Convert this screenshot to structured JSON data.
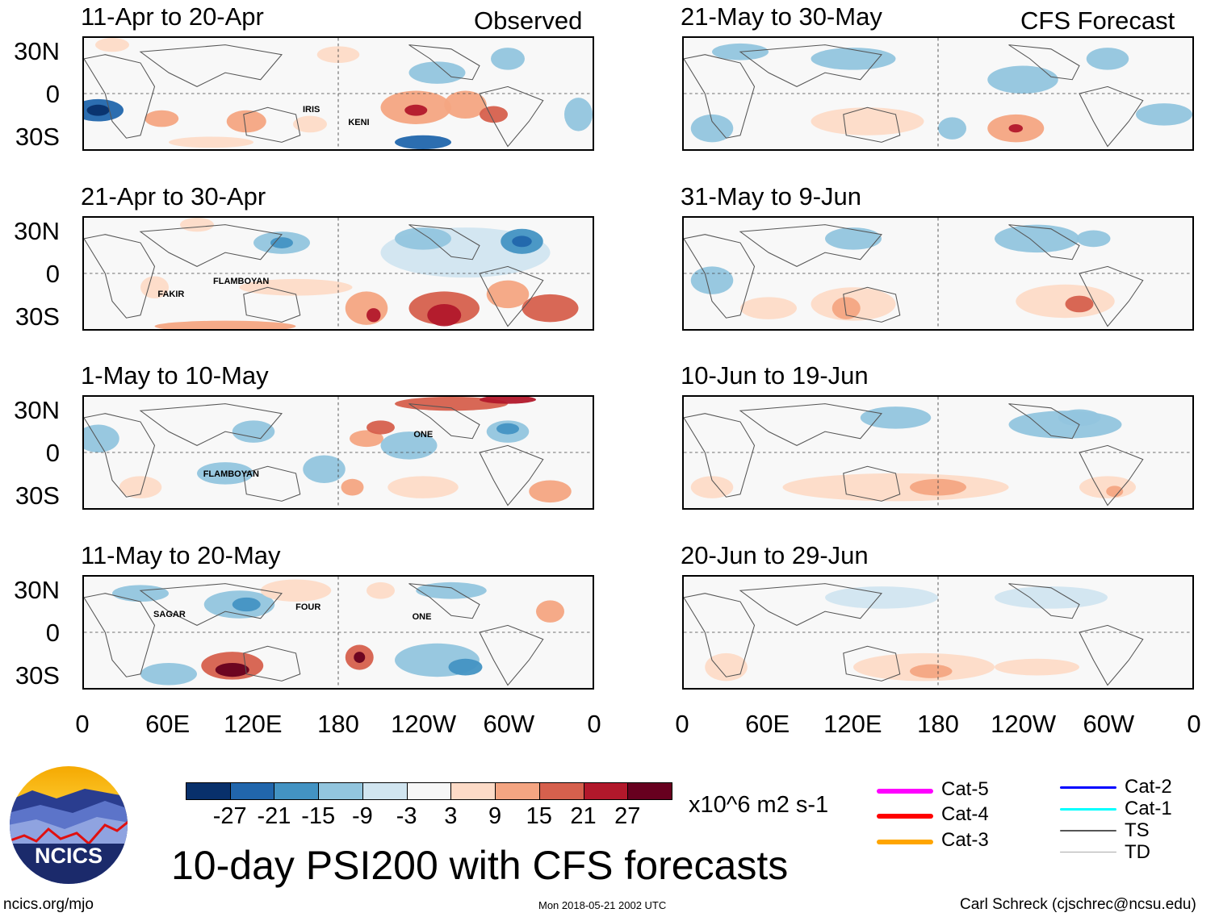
{
  "observed_label": "Observed",
  "forecast_label": "CFS Forecast",
  "observed_panels": [
    {
      "title": "11-Apr to 20-Apr",
      "storms": [
        {
          "name": "IRIS",
          "lon": 155,
          "lat": -12
        },
        {
          "name": "KENI",
          "lon": 187,
          "lat": -21
        }
      ]
    },
    {
      "title": "21-Apr to 30-Apr",
      "storms": [
        {
          "name": "FAKIR",
          "lon": 53,
          "lat": -15
        },
        {
          "name": "FLAMBOYAN",
          "lon": 92,
          "lat": -6
        }
      ]
    },
    {
      "title": "1-May to 10-May",
      "storms": [
        {
          "name": "ONE",
          "lon": 233,
          "lat": 12
        },
        {
          "name": "FLAMBOYAN",
          "lon": 85,
          "lat": -16
        }
      ]
    },
    {
      "title": "11-May to 20-May",
      "storms": [
        {
          "name": "SAGAR",
          "lon": 50,
          "lat": 12
        },
        {
          "name": "FOUR",
          "lon": 150,
          "lat": 17
        },
        {
          "name": "ONE",
          "lon": 232,
          "lat": 10
        }
      ]
    }
  ],
  "forecast_panels": [
    {
      "title": "21-May to 30-May"
    },
    {
      "title": "31-May to 9-Jun"
    },
    {
      "title": "10-Jun to 19-Jun"
    },
    {
      "title": "20-Jun to 29-Jun"
    }
  ],
  "lat_labels": [
    "30N",
    "0",
    "30S"
  ],
  "lon_labels": [
    "0",
    "60E",
    "120E",
    "180",
    "120W",
    "60W",
    "0"
  ],
  "colorbar": {
    "colors": [
      "#08306b",
      "#2166ac",
      "#4393c3",
      "#92c5de",
      "#d1e5f0",
      "#f7f7f7",
      "#fddbc7",
      "#f4a582",
      "#d6604d",
      "#b2182b",
      "#67001f"
    ],
    "labels": [
      "-27",
      "-21",
      "-15",
      "-9",
      "-3",
      "3",
      "9",
      "15",
      "21",
      "27"
    ],
    "units": "x10^6 m2 s-1"
  },
  "legend": [
    {
      "label": "Cat-5",
      "color": "#ff00ff"
    },
    {
      "label": "Cat-4",
      "color": "#ff0000"
    },
    {
      "label": "Cat-3",
      "color": "#ffa500"
    },
    {
      "label": "Cat-2",
      "color": "#0000ff"
    },
    {
      "label": "Cat-1",
      "color": "#00ffff"
    },
    {
      "label": "TS",
      "color": "#555555"
    },
    {
      "label": "TD",
      "color": "#aaaaaa"
    }
  ],
  "title": "10-day PSI200 with CFS forecasts",
  "logo_text": "NCICS",
  "footer": {
    "left": "ncics.org/mjo",
    "center": "Mon 2018-05-21 2002 UTC",
    "right": "Carl Schreck (cjschrec@ncsu.edu)"
  }
}
